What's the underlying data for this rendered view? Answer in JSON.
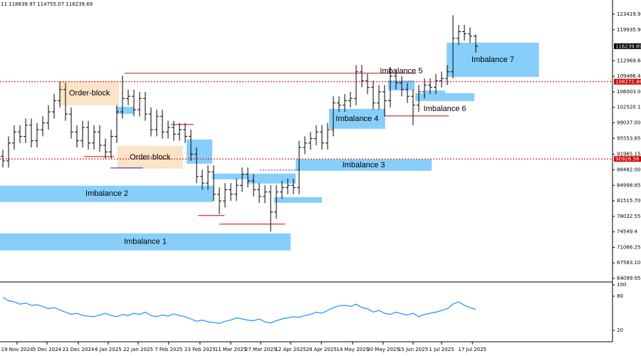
{
  "header": "11 118839.97 114755.07 116239.69",
  "chart_data": [
    {
      "type": "candlestick",
      "color": "#000000",
      "open": [
        91500,
        90500,
        94500,
        97000,
        96000,
        98500,
        95000,
        97500,
        99000,
        101500,
        104000,
        106500,
        101000,
        97000,
        95000,
        98000,
        94500,
        97000,
        94000,
        92500,
        96000,
        101500,
        104500,
        105000,
        102000,
        104500,
        101000,
        97500,
        100500,
        97000,
        98000,
        96500,
        97500,
        96000,
        92000,
        87000,
        85500,
        88000,
        83000,
        81500,
        84000,
        83000,
        85000,
        87500,
        86000,
        84000,
        82500,
        83500,
        79000,
        83500,
        84500,
        85000,
        84500,
        93500,
        94500,
        95500,
        97000,
        94500,
        97500,
        103500,
        103000,
        104000,
        104500,
        110500,
        108500,
        107000,
        103500,
        106000,
        104000,
        109500,
        108000,
        106500,
        105000,
        103000,
        106000,
        107500,
        107000,
        108500,
        109000,
        110500,
        118000,
        119500,
        119000,
        118500
      ],
      "high": [
        93000,
        96000,
        98500,
        98500,
        100000,
        100000,
        99000,
        100500,
        103000,
        105500,
        108300,
        108000,
        102500,
        98500,
        99500,
        99500,
        98500,
        98500,
        95500,
        97500,
        103000,
        109600,
        106500,
        106500,
        106000,
        106000,
        102500,
        102000,
        102000,
        99500,
        99500,
        99000,
        99000,
        97500,
        93500,
        88500,
        89500,
        89500,
        84500,
        85500,
        85500,
        86500,
        89000,
        89000,
        87500,
        85500,
        85000,
        85000,
        85000,
        86000,
        86500,
        86500,
        95000,
        96000,
        97000,
        98500,
        98500,
        99000,
        105000,
        105000,
        105500,
        106000,
        112000,
        112000,
        110000,
        108500,
        107500,
        107500,
        111500,
        111000,
        109500,
        108000,
        106500,
        107500,
        109000,
        109000,
        110000,
        110500,
        112000,
        123200,
        121000,
        121000,
        120500,
        118839.97
      ],
      "low": [
        89000,
        89000,
        93000,
        94500,
        94500,
        93500,
        93500,
        96000,
        97500,
        100000,
        102500,
        99500,
        95500,
        93500,
        93500,
        93000,
        93000,
        92500,
        91000,
        91000,
        94500,
        100000,
        103000,
        100500,
        100500,
        99500,
        96000,
        96000,
        95500,
        95500,
        95000,
        95000,
        94500,
        90500,
        85500,
        84000,
        84000,
        81500,
        78500,
        80000,
        81500,
        81500,
        83500,
        84500,
        82500,
        81000,
        81000,
        74600,
        77500,
        82000,
        83000,
        83000,
        83000,
        92000,
        93000,
        94000,
        93000,
        93000,
        96000,
        101500,
        101500,
        102500,
        103000,
        107000,
        105500,
        102000,
        102000,
        100500,
        102500,
        106500,
        105000,
        103500,
        98500,
        101500,
        104500,
        105500,
        105500,
        107000,
        107500,
        109000,
        116500,
        117500,
        117000,
        114755.07
      ],
      "close": [
        90500,
        94500,
        97000,
        96000,
        98500,
        95000,
        97500,
        99000,
        101500,
        104000,
        106500,
        101000,
        97000,
        95000,
        98000,
        94500,
        97000,
        94000,
        92500,
        96000,
        101500,
        104500,
        105000,
        102000,
        104500,
        101000,
        97500,
        100500,
        97000,
        98000,
        96500,
        97500,
        96000,
        92000,
        87000,
        85500,
        88000,
        83000,
        81500,
        84000,
        83000,
        85000,
        87500,
        86000,
        84000,
        82500,
        83500,
        79000,
        83500,
        84500,
        85000,
        84500,
        93500,
        94500,
        95500,
        97000,
        94500,
        97500,
        103500,
        103000,
        104000,
        104500,
        110500,
        108500,
        107000,
        103500,
        106000,
        104000,
        109500,
        108000,
        106500,
        105000,
        103000,
        106000,
        107500,
        107000,
        108500,
        109000,
        110500,
        118000,
        119500,
        119000,
        118500,
        116239.69
      ],
      "xlim": [
        -0.5,
        107
      ],
      "ylim": [
        63460,
        126616
      ],
      "yticks": [
        123419.95,
        {
          "value": 119935.9,
          "label": "119935.90"
        },
        {
          "value": 112969.6,
          "label": "112969.60"
        },
        109486.45,
        106003.05,
        102520.15,
        {
          "value": 99037,
          "label": "99037.00"
        },
        95553.85,
        91965.15,
        {
          "value": 88482,
          "label": "88482.00"
        },
        84998.85,
        {
          "value": 81515.7,
          "label": "81515.70"
        },
        78032.55,
        74549.4,
        71066.25,
        {
          "value": 67583.1,
          "label": "67583.10"
        },
        64099.95
      ],
      "xticks": [
        {
          "value": 2.5,
          "label": "19 Nov 2024"
        },
        {
          "value": 7.75,
          "label": "5 Dec 2024"
        },
        {
          "value": 13.25,
          "label": "21 Dec 2024"
        },
        {
          "value": 18.5,
          "label": "6 Jan 2025"
        },
        {
          "value": 23.75,
          "label": "22 Jan 2025"
        },
        {
          "value": 29.1,
          "label": "7 Feb 2025"
        },
        {
          "value": 34.6,
          "label": "23 Feb 2025"
        },
        {
          "value": 40,
          "label": "11 Mar 2025"
        },
        {
          "value": 45.25,
          "label": "27 Mar 2025"
        },
        {
          "value": 50.5,
          "label": "12 Apr 2025"
        },
        {
          "value": 55.9,
          "label": "28 Apr 2025"
        },
        {
          "value": 61.4,
          "label": "14 May 2025"
        },
        {
          "value": 66.75,
          "label": "30 May 2025"
        },
        {
          "value": 72,
          "label": "15 Jun 2025"
        },
        {
          "value": 77,
          "label": "1 Jul 2025"
        },
        {
          "value": 82.4,
          "label": "17 Jul 2025"
        }
      ],
      "last_price": 116239.69,
      "zones": [
        {
          "label": "Imbalance 1",
          "x": [
            -0.5,
            50.5
          ],
          "y": [
            70372,
            74208
          ],
          "color": "#87cefa"
        },
        {
          "label": "Imbalance 2",
          "x": [
            -0.5,
            37
          ],
          "y": [
            81239,
            84914
          ],
          "color": "#87cefa"
        },
        {
          "label": "Imbalance 3",
          "x": [
            51.4,
            75.25
          ],
          "y": [
            88268,
            90824
          ],
          "color": "#87cefa"
        },
        {
          "label": "Imbalance 4",
          "x": [
            57.25,
            67.1
          ],
          "y": [
            97696,
            102170
          ],
          "color": "#87cefa"
        },
        {
          "label": "Imbalance 5",
          "x": [
            67.6,
            72.25
          ],
          "y": [
            106323,
            108560
          ],
          "color": "#87cefa",
          "label_pos": "above"
        },
        {
          "label": "Imbalance 6",
          "x": [
            72.4,
            82.75
          ],
          "y": [
            103927,
            105684
          ],
          "color": "#87cefa",
          "label_pos": "below"
        },
        {
          "label": "Imbalance 7",
          "x": [
            77.9,
            94.1
          ],
          "y": [
            109359,
            117029
          ],
          "color": "#87cefa"
        },
        {
          "label": "Order-block",
          "x": [
            10,
            20.4
          ],
          "y": [
            102968,
            108400
          ],
          "color": "#fbe3c8"
        },
        {
          "label": "Order-block",
          "x": [
            20.1,
            31.6
          ],
          "y": [
            88747,
            93860
          ],
          "color": "#fbe3c8"
        },
        {
          "x": [
            19.9,
            23
          ],
          "y": [
            101050,
            102648
          ],
          "color": "#87cefa"
        },
        {
          "x": [
            32.25,
            36.75
          ],
          "y": [
            89866,
            95298
          ],
          "color": "#87cefa"
        },
        {
          "x": [
            36.75,
            51.4
          ],
          "y": [
            86352,
            87630
          ],
          "color": "#87cefa"
        },
        {
          "x": [
            42.9,
            51.4
          ],
          "y": [
            85400,
            86500
          ],
          "color": "#87cefa"
        },
        {
          "x": [
            47.6,
            56
          ],
          "y": [
            81079,
            82357
          ],
          "color": "#87cefa"
        },
        {
          "x": [
            74.1,
            77.6
          ],
          "y": [
            105200,
            106300
          ],
          "color": "#87cefa"
        }
      ],
      "levels": [
        {
          "price": 110158,
          "x": [
            21.4,
            72.6
          ],
          "color": "#d00000"
        },
        {
          "price": 108272.88,
          "x": [
            -0.5,
            107
          ],
          "color": "#d00000",
          "dashed": true,
          "tagged": true
        },
        {
          "price": 90926.58,
          "x": [
            -0.5,
            107
          ],
          "color": "#d00000",
          "dashed": true,
          "tagged": true
        },
        {
          "price": 98655,
          "x": [
            29.5,
            33.5
          ],
          "color": "#d00000"
        },
        {
          "price": 91464,
          "x": [
            14.25,
            19.5
          ],
          "color": "#d00000"
        },
        {
          "price": 78203,
          "x": [
            34.25,
            38.9
          ],
          "color": "#d00000"
        },
        {
          "price": 76286,
          "x": [
            38,
            49.5
          ],
          "color": "#d00000"
        },
        {
          "price": 100570,
          "x": [
            67,
            78.25
          ],
          "color": "#d00000"
        },
        {
          "price": 88908,
          "x": [
            18.9,
            24.6
          ],
          "color": "#2020c0"
        },
        {
          "price": 88429,
          "x": [
            45.1,
            52
          ],
          "color": "#2020c0",
          "dashed": true
        }
      ]
    },
    {
      "type": "line",
      "color": "#1e90ff",
      "xlim": [
        -0.5,
        107
      ],
      "ylim": [
        2.5,
        102.5
      ],
      "yticks": [
        100,
        80,
        20
      ],
      "values": [
        78,
        72,
        70,
        66,
        68,
        64,
        65,
        62,
        58,
        60,
        56,
        52,
        48,
        50,
        46,
        45,
        44,
        47,
        50,
        46,
        44,
        48,
        46,
        50,
        48,
        52,
        46,
        44,
        47,
        45,
        49,
        46,
        44,
        40,
        36,
        38,
        35,
        34,
        32,
        36,
        38,
        42,
        40,
        38,
        37,
        40,
        35,
        33,
        37,
        40,
        42,
        44,
        43,
        46,
        48,
        52,
        50,
        55,
        60,
        63,
        64,
        62,
        66,
        60,
        58,
        52,
        55,
        50,
        48,
        52,
        49,
        47,
        50,
        44,
        48,
        50,
        52,
        55,
        58,
        66,
        70,
        64,
        60,
        57
      ]
    }
  ]
}
